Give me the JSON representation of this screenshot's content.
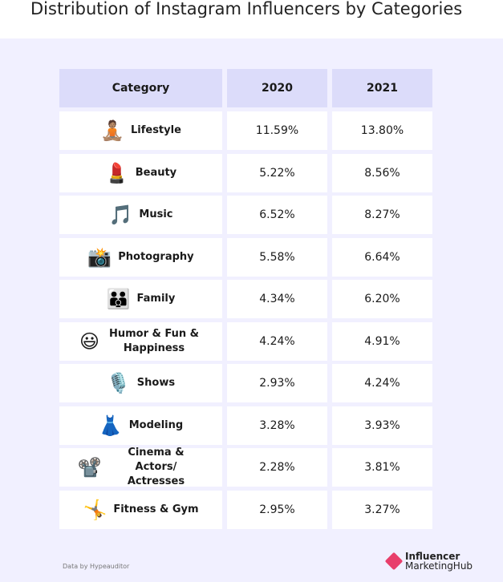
{
  "title": "Distribution of Instagram Influencers by Categories",
  "footnote": "Data by Hypeauditor",
  "logo": {
    "line1": "Influencer",
    "line2": "MarketingHub"
  },
  "chart_data": {
    "type": "table",
    "columns": [
      "Category",
      "2020",
      "2021"
    ],
    "rows": [
      {
        "icon": "person-in-lotus-position-icon",
        "emoji": "🧘🏽",
        "category": "Lifestyle",
        "y2020": "11.59%",
        "y2021": "13.80%"
      },
      {
        "icon": "lipstick-icon",
        "emoji": "💄",
        "category": "Beauty",
        "y2020": "5.22%",
        "y2021": "8.56%"
      },
      {
        "icon": "musical-note-icon",
        "emoji": "🎵",
        "category": "Music",
        "y2020": "6.52%",
        "y2021": "8.27%"
      },
      {
        "icon": "camera-with-flash-icon",
        "emoji": "📸",
        "category": "Photography",
        "y2020": "5.58%",
        "y2021": "6.64%"
      },
      {
        "icon": "family-icon",
        "emoji": "👪",
        "category": "Family",
        "y2020": "4.34%",
        "y2021": "6.20%"
      },
      {
        "icon": "grinning-face-icon",
        "emoji": "😃",
        "category": "Humor & Fun & Happiness",
        "y2020": "4.24%",
        "y2021": "4.91%"
      },
      {
        "icon": "studio-microphone-icon",
        "emoji": "🎙️",
        "category": "Shows",
        "y2020": "2.93%",
        "y2021": "4.24%"
      },
      {
        "icon": "dress-icon",
        "emoji": "👗",
        "category": "Modeling",
        "y2020": "3.28%",
        "y2021": "3.93%"
      },
      {
        "icon": "film-projector-icon",
        "emoji": "📽️",
        "category": "Cinema & Actors/ Actresses",
        "y2020": "2.28%",
        "y2021": "3.81%"
      },
      {
        "icon": "person-cartwheeling-icon",
        "emoji": "🤸",
        "category": "Fitness & Gym",
        "y2020": "2.95%",
        "y2021": "3.27%"
      }
    ]
  }
}
